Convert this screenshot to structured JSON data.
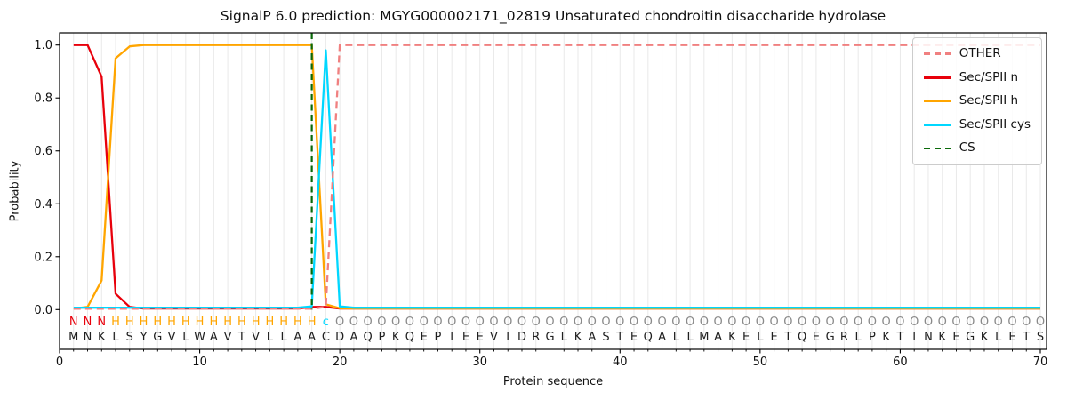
{
  "figure": {
    "title": "SignalP 6.0 prediction: MGYG000002171_02819 Unsaturated chondroitin disaccharide hydrolase",
    "xlabel": "Protein sequence",
    "ylabel": "Probability"
  },
  "colors": {
    "grid": "#e9e9e9",
    "spine": "#000000",
    "tick_text": "#111111"
  },
  "chart_data": {
    "type": "line",
    "title": "SignalP 6.0 prediction: MGYG000002171_02819 Unsaturated chondroitin disaccharide hydrolase",
    "xlabel": "Protein sequence",
    "ylabel": "Probability",
    "xlim": [
      0,
      70.5
    ],
    "ylim": [
      0,
      1.05
    ],
    "grid": "vertical line at every residue position",
    "legend_position": "upper right",
    "x_ticks": [
      0,
      10,
      20,
      30,
      40,
      50,
      60,
      70
    ],
    "y_ticks": [
      "0.0",
      "0.2",
      "0.4",
      "0.6",
      "0.8",
      "1.0"
    ],
    "x": [
      1,
      2,
      3,
      4,
      5,
      6,
      7,
      8,
      9,
      10,
      11,
      12,
      13,
      14,
      15,
      16,
      17,
      18,
      19,
      20,
      21,
      22,
      23,
      24,
      25,
      26,
      27,
      28,
      29,
      30,
      31,
      32,
      33,
      34,
      35,
      36,
      37,
      38,
      39,
      40,
      41,
      42,
      43,
      44,
      45,
      46,
      47,
      48,
      49,
      50,
      51,
      52,
      53,
      54,
      55,
      56,
      57,
      58,
      59,
      60,
      61,
      62,
      63,
      64,
      65,
      66,
      67,
      68,
      69,
      70
    ],
    "series": [
      {
        "name": "Sec/SPII n",
        "color": "#e8000b",
        "dash": false,
        "values": [
          1.0,
          1.0,
          0.88,
          0.06,
          0.01,
          0.004,
          0.004,
          0.004,
          0.004,
          0.004,
          0.004,
          0.004,
          0.004,
          0.004,
          0.004,
          0.004,
          0.004,
          0.01,
          0.01,
          0.004,
          0.004,
          0.004,
          0.004,
          0.004,
          0.004,
          0.004,
          0.004,
          0.004,
          0.004,
          0.004,
          0.004,
          0.004,
          0.004,
          0.004,
          0.004,
          0.004,
          0.004,
          0.004,
          0.004,
          0.004,
          0.004,
          0.004,
          0.004,
          0.004,
          0.004,
          0.004,
          0.004,
          0.004,
          0.004,
          0.004,
          0.004,
          0.004,
          0.004,
          0.004,
          0.004,
          0.004,
          0.004,
          0.004,
          0.004,
          0.004,
          0.004,
          0.004,
          0.004,
          0.004,
          0.004,
          0.004,
          0.004,
          0.004,
          0.004,
          0.004
        ]
      },
      {
        "name": "Sec/SPII h",
        "color": "#ffa500",
        "dash": false,
        "values": [
          0.004,
          0.01,
          0.11,
          0.95,
          0.995,
          1.0,
          1.0,
          1.0,
          1.0,
          1.0,
          1.0,
          1.0,
          1.0,
          1.0,
          1.0,
          1.0,
          1.0,
          1.0,
          0.02,
          0.005,
          0.004,
          0.004,
          0.004,
          0.004,
          0.004,
          0.004,
          0.004,
          0.004,
          0.004,
          0.004,
          0.004,
          0.004,
          0.004,
          0.004,
          0.004,
          0.004,
          0.004,
          0.004,
          0.004,
          0.004,
          0.004,
          0.004,
          0.004,
          0.004,
          0.004,
          0.004,
          0.004,
          0.004,
          0.004,
          0.004,
          0.004,
          0.004,
          0.004,
          0.004,
          0.004,
          0.004,
          0.004,
          0.004,
          0.004,
          0.004,
          0.004,
          0.004,
          0.004,
          0.004,
          0.004,
          0.004,
          0.004,
          0.004,
          0.004,
          0.004
        ]
      },
      {
        "name": "Sec/SPII cys",
        "color": "#00d7ff",
        "dash": false,
        "values": [
          0.007,
          0.007,
          0.007,
          0.007,
          0.007,
          0.007,
          0.007,
          0.007,
          0.007,
          0.007,
          0.007,
          0.007,
          0.007,
          0.007,
          0.007,
          0.007,
          0.007,
          0.012,
          0.98,
          0.012,
          0.007,
          0.007,
          0.007,
          0.007,
          0.007,
          0.007,
          0.007,
          0.007,
          0.007,
          0.007,
          0.007,
          0.007,
          0.007,
          0.007,
          0.007,
          0.007,
          0.007,
          0.007,
          0.007,
          0.007,
          0.007,
          0.007,
          0.007,
          0.007,
          0.007,
          0.007,
          0.007,
          0.007,
          0.007,
          0.007,
          0.007,
          0.007,
          0.007,
          0.007,
          0.007,
          0.007,
          0.007,
          0.007,
          0.007,
          0.007,
          0.007,
          0.007,
          0.007,
          0.007,
          0.007,
          0.007,
          0.007,
          0.007,
          0.007,
          0.007
        ]
      },
      {
        "name": "OTHER",
        "color": "#f08080",
        "dash": true,
        "values": [
          0.003,
          0.003,
          0.003,
          0.003,
          0.003,
          0.003,
          0.003,
          0.003,
          0.003,
          0.003,
          0.003,
          0.003,
          0.003,
          0.003,
          0.003,
          0.003,
          0.003,
          0.003,
          0.01,
          1.0,
          1.0,
          1.0,
          1.0,
          1.0,
          1.0,
          1.0,
          1.0,
          1.0,
          1.0,
          1.0,
          1.0,
          1.0,
          1.0,
          1.0,
          1.0,
          1.0,
          1.0,
          1.0,
          1.0,
          1.0,
          1.0,
          1.0,
          1.0,
          1.0,
          1.0,
          1.0,
          1.0,
          1.0,
          1.0,
          1.0,
          1.0,
          1.0,
          1.0,
          1.0,
          1.0,
          1.0,
          1.0,
          1.0,
          1.0,
          1.0,
          1.0,
          1.0,
          1.0,
          1.0,
          1.0,
          1.0,
          1.0,
          1.0,
          1.0,
          1.0
        ]
      }
    ],
    "cs_marker": {
      "name": "CS",
      "x": 18,
      "color": "#0a6a0a",
      "dash": true
    },
    "annotation_row": {
      "letters": "NNNHHHHHHHHHHHHHHHcOOOOOOOOOOOOOOOOOOOOOOOOOOOOOOOOOOOOOOOOOOOOOOOOOOO",
      "colors": {
        "N": "#e8000b",
        "H": "#ffa500",
        "c": "#00d7ff",
        "O": "#8a8a8a"
      }
    },
    "sequence_row": {
      "letters": "MNKLSYGVLWAVTVLLAACDAQPKQEPIEEVIDRGLKASTEQALLMAKELETQEGRLPKTINKEGKLETS",
      "color": "#1f1f1f"
    },
    "legend": {
      "position": "upper right",
      "items": [
        {
          "label": "OTHER",
          "color": "#f08080",
          "dash": true
        },
        {
          "label": "Sec/SPII n",
          "color": "#e8000b",
          "dash": false
        },
        {
          "label": "Sec/SPII h",
          "color": "#ffa500",
          "dash": false
        },
        {
          "label": "Sec/SPII cys",
          "color": "#00d7ff",
          "dash": false
        },
        {
          "label": "CS",
          "color": "#0a6a0a",
          "dash": true
        }
      ]
    }
  }
}
